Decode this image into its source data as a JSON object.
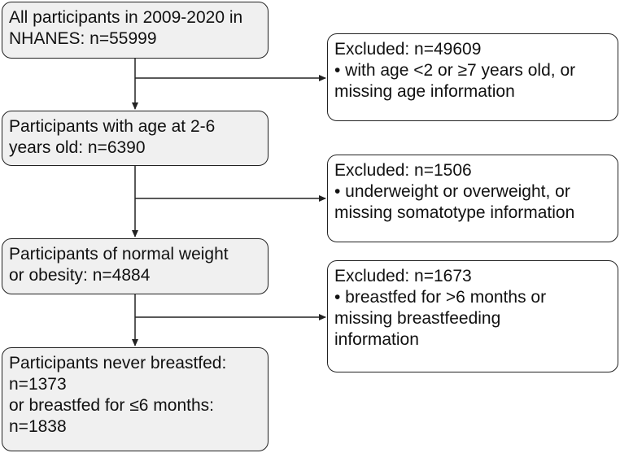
{
  "flow": {
    "box1": {
      "lines": [
        "All participants in 2009-2020 in",
        "NHANES: n=55999"
      ]
    },
    "box2": {
      "lines": [
        "Participants with age at 2-6",
        "years old: n=6390"
      ]
    },
    "box3": {
      "lines": [
        "Participants of normal weight",
        "or obesity: n=4884"
      ]
    },
    "box4": {
      "lines": [
        "Participants never breastfed:",
        "n=1373",
        "or breastfed for ≤6 months:",
        "n=1838"
      ]
    }
  },
  "exclusions": {
    "ex1": {
      "lines": [
        "Excluded: n=49609",
        "• with age <2 or ≥7 years old, or",
        "missing age information"
      ]
    },
    "ex2": {
      "lines": [
        "Excluded: n=1506",
        "• underweight or overweight, or",
        "missing somatotype information"
      ]
    },
    "ex3": {
      "lines": [
        "Excluded: n=1673",
        "• breastfed for >6 months or",
        "missing breastfeeding",
        "information"
      ]
    }
  }
}
